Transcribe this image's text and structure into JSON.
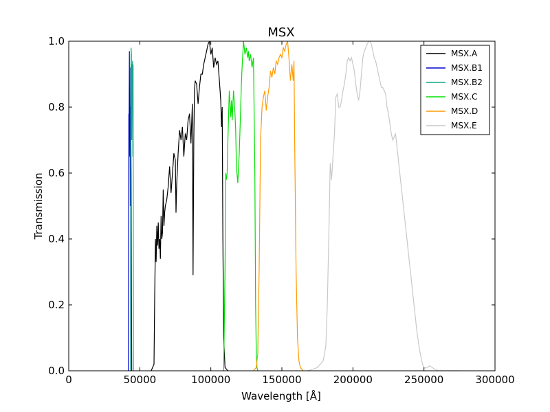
{
  "chart_data": {
    "type": "line",
    "title": "MSX",
    "xlabel": "Wavelength [Å]",
    "ylabel": "Transmission",
    "xlim": [
      0,
      300000
    ],
    "ylim": [
      0,
      1.0
    ],
    "xticks": [
      0,
      50000,
      100000,
      150000,
      200000,
      250000,
      300000
    ],
    "xtick_labels": [
      "0",
      "50000",
      "100000",
      "150000",
      "200000",
      "250000",
      "300000"
    ],
    "yticks": [
      0,
      0.2,
      0.4,
      0.6,
      0.8,
      1.0
    ],
    "ytick_labels": [
      "0.0",
      "0.2",
      "0.4",
      "0.6",
      "0.8",
      "1.0"
    ],
    "grid": false,
    "legend_position": "top-right",
    "series": [
      {
        "name": "MSX.A",
        "color": "#000000",
        "x": [
          58000,
          60000,
          60500,
          61000,
          61500,
          62000,
          62500,
          63000,
          63500,
          64000,
          64500,
          65000,
          65500,
          66000,
          66500,
          67000,
          67500,
          68000,
          69000,
          70000,
          71000,
          72000,
          73000,
          74000,
          75000,
          75500,
          76000,
          77000,
          78000,
          79000,
          80000,
          81000,
          82000,
          83000,
          84000,
          85000,
          86000,
          87000,
          87500,
          88000,
          88500,
          89000,
          90000,
          91000,
          92000,
          93000,
          94000,
          95000,
          96000,
          97000,
          98000,
          99000,
          100000,
          101000,
          102000,
          103000,
          104000,
          105000,
          106000,
          107000,
          107500,
          108000,
          108500,
          109000,
          110000,
          112000
        ],
        "y": [
          0.0,
          0.02,
          0.22,
          0.4,
          0.33,
          0.44,
          0.38,
          0.45,
          0.37,
          0.4,
          0.34,
          0.47,
          0.4,
          0.42,
          0.55,
          0.44,
          0.48,
          0.5,
          0.52,
          0.56,
          0.62,
          0.54,
          0.6,
          0.66,
          0.64,
          0.48,
          0.57,
          0.66,
          0.73,
          0.7,
          0.74,
          0.65,
          0.72,
          0.7,
          0.76,
          0.78,
          0.69,
          0.81,
          0.29,
          0.7,
          0.85,
          0.88,
          0.87,
          0.81,
          0.86,
          0.9,
          0.9,
          0.93,
          0.95,
          0.97,
          0.99,
          1.0,
          0.96,
          0.98,
          0.92,
          0.95,
          0.93,
          0.94,
          0.88,
          0.82,
          0.74,
          0.8,
          0.4,
          0.1,
          0.01,
          0.0
        ]
      },
      {
        "name": "MSX.B1",
        "color": "#0000cc",
        "x": [
          42000,
          42300,
          42500,
          42700,
          42900,
          43100,
          43300,
          43500,
          43700,
          43900,
          44100,
          44300
        ],
        "y": [
          0.0,
          0.78,
          0.76,
          0.97,
          0.65,
          0.8,
          0.5,
          0.92,
          0.73,
          0.6,
          0.3,
          0.0
        ]
      },
      {
        "name": "MSX.B2",
        "color": "#17a589",
        "x": [
          43500,
          43700,
          43900,
          44100,
          44300,
          44500,
          44700,
          44900,
          45100,
          45300,
          45500
        ],
        "y": [
          0.0,
          0.9,
          0.98,
          0.96,
          0.7,
          0.93,
          0.89,
          0.94,
          0.65,
          0.93,
          0.0
        ]
      },
      {
        "name": "MSX.C",
        "color": "#00e000",
        "x": [
          109000,
          110000,
          110500,
          111000,
          111500,
          112000,
          113000,
          114000,
          114500,
          115000,
          116000,
          117000,
          117500,
          118000,
          119000,
          120000,
          121000,
          121500,
          122000,
          123000,
          124000,
          125000,
          126000,
          126500,
          127000,
          128000,
          129000,
          130000,
          131000,
          131500,
          132000,
          132500,
          133000
        ],
        "y": [
          0.0,
          0.3,
          0.6,
          0.58,
          0.6,
          0.7,
          0.85,
          0.77,
          0.82,
          0.76,
          0.85,
          0.78,
          0.73,
          0.62,
          0.57,
          0.66,
          0.8,
          0.87,
          0.92,
          1.0,
          0.96,
          0.98,
          0.95,
          0.97,
          0.94,
          0.96,
          0.92,
          0.95,
          0.6,
          0.2,
          0.05,
          0.01,
          0.0
        ]
      },
      {
        "name": "MSX.D",
        "color": "#ff9900",
        "x": [
          130000,
          132000,
          133000,
          134000,
          135000,
          136000,
          137000,
          138000,
          139000,
          140000,
          141000,
          142000,
          143000,
          144000,
          145000,
          146000,
          147000,
          148000,
          149000,
          150000,
          151000,
          152000,
          153000,
          154000,
          155000,
          156000,
          157000,
          158000,
          158500,
          159000,
          160000,
          161000,
          162000,
          163000,
          165000
        ],
        "y": [
          0.0,
          0.01,
          0.05,
          0.3,
          0.7,
          0.8,
          0.83,
          0.85,
          0.79,
          0.83,
          0.86,
          0.91,
          0.89,
          0.92,
          0.9,
          0.94,
          0.93,
          0.95,
          0.96,
          0.95,
          0.98,
          0.97,
          0.99,
          1.0,
          0.95,
          0.88,
          0.93,
          0.88,
          0.94,
          0.7,
          0.3,
          0.1,
          0.03,
          0.01,
          0.0
        ]
      },
      {
        "name": "MSX.E",
        "color": "#c8c8c8",
        "x": [
          168000,
          172000,
          175000,
          177000,
          179000,
          180000,
          181000,
          182000,
          183000,
          184000,
          185000,
          186000,
          187000,
          188000,
          189000,
          190000,
          191000,
          192000,
          193000,
          194000,
          195000,
          196000,
          197000,
          198000,
          199000,
          200000,
          201000,
          202000,
          203000,
          204000,
          205000,
          206000,
          207000,
          208000,
          209000,
          210000,
          211000,
          212000,
          213000,
          214000,
          215000,
          216000,
          217000,
          218000,
          219000,
          220000,
          221000,
          222000,
          223000,
          224000,
          225000,
          226000,
          227000,
          228000,
          229000,
          230000,
          231000,
          232000,
          233000,
          234000,
          235000,
          236000,
          237000,
          238000,
          239000,
          240000,
          241000,
          242000,
          243000,
          244000,
          245000,
          246000,
          247000,
          248000,
          249000,
          250000,
          251000,
          252000,
          253000,
          254000,
          255000,
          256000,
          257000,
          258000,
          259000,
          260000,
          261000,
          262000,
          263000,
          264000,
          265000,
          266000,
          267000,
          268000,
          269000,
          270000,
          271000,
          272000,
          273000,
          274000,
          275000,
          276000
        ],
        "y": [
          0.0,
          0.005,
          0.01,
          0.02,
          0.03,
          0.05,
          0.08,
          0.2,
          0.4,
          0.63,
          0.58,
          0.65,
          0.72,
          0.83,
          0.84,
          0.8,
          0.8,
          0.82,
          0.85,
          0.87,
          0.9,
          0.94,
          0.95,
          0.94,
          0.95,
          0.93,
          0.91,
          0.87,
          0.84,
          0.82,
          0.85,
          0.9,
          0.95,
          0.97,
          0.98,
          0.99,
          1.0,
          1.0,
          0.99,
          0.97,
          0.95,
          0.94,
          0.92,
          0.9,
          0.88,
          0.86,
          0.86,
          0.85,
          0.84,
          0.8,
          0.78,
          0.75,
          0.72,
          0.7,
          0.71,
          0.72,
          0.68,
          0.64,
          0.6,
          0.56,
          0.52,
          0.48,
          0.44,
          0.4,
          0.36,
          0.32,
          0.28,
          0.24,
          0.2,
          0.16,
          0.12,
          0.09,
          0.06,
          0.04,
          0.02,
          0.01,
          0.008,
          0.01,
          0.012,
          0.015,
          0.012,
          0.01,
          0.006,
          0.004,
          0.002,
          0.0,
          0.0,
          0.0,
          0.0,
          0.0,
          0.0,
          0.0,
          0.0,
          0.0,
          0.0,
          0.0,
          0.0,
          0.0,
          0.0,
          0.0,
          0.0,
          0.0
        ]
      }
    ]
  }
}
